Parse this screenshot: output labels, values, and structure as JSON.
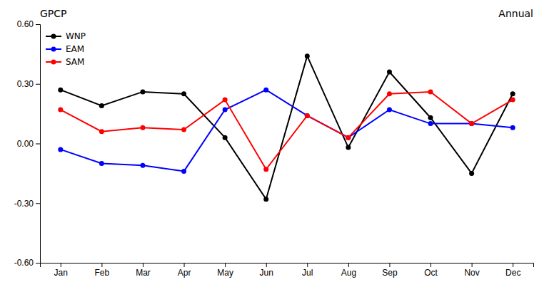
{
  "chart_data": {
    "type": "line",
    "title": "GPCP",
    "subtitle": "Annual",
    "categories": [
      "Jan",
      "Feb",
      "Mar",
      "Apr",
      "May",
      "Jun",
      "Jul",
      "Aug",
      "Sep",
      "Oct",
      "Nov",
      "Dec"
    ],
    "series": [
      {
        "name": "WNP",
        "color": "#000000",
        "marker": "circle",
        "values": [
          0.27,
          0.19,
          0.26,
          0.25,
          0.03,
          -0.28,
          0.44,
          -0.02,
          0.36,
          0.13,
          -0.15,
          0.25
        ]
      },
      {
        "name": "EAM",
        "color": "#0000ff",
        "marker": "circle",
        "values": [
          -0.03,
          -0.1,
          -0.11,
          -0.14,
          0.17,
          0.27,
          0.14,
          0.03,
          0.17,
          0.1,
          0.1,
          0.08
        ]
      },
      {
        "name": "SAM",
        "color": "#ff0000",
        "marker": "circle",
        "values": [
          0.17,
          0.06,
          0.08,
          0.07,
          0.22,
          -0.13,
          0.14,
          0.03,
          0.25,
          0.26,
          0.1,
          0.22
        ]
      }
    ],
    "ylim": [
      -0.6,
      0.6
    ],
    "yticks": [
      {
        "value": -0.6,
        "label": "-0.60"
      },
      {
        "value": -0.3,
        "label": "-0.30"
      },
      {
        "value": 0.0,
        "label": "0.00"
      },
      {
        "value": 0.3,
        "label": "0.30"
      },
      {
        "value": 0.6,
        "label": "0.60"
      }
    ],
    "legend": "upper left",
    "grid": false
  }
}
